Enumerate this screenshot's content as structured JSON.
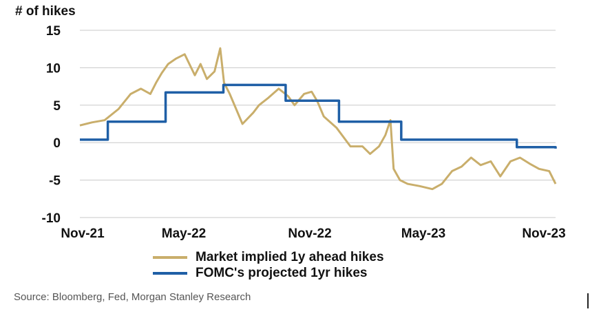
{
  "chart_data": {
    "type": "line",
    "ylabel": "# of hikes",
    "ylim": [
      -10,
      15
    ],
    "yticks": [
      15,
      10,
      5,
      0,
      -5,
      -10
    ],
    "xticks": [
      "Nov-21",
      "May-22",
      "Nov-22",
      "May-23",
      "Nov-23"
    ],
    "grid": "horizontal",
    "legend_position": "bottom",
    "series": [
      {
        "name": "Market implied 1y ahead hikes",
        "color": "#C9AE6B",
        "x": [
          "2021-11-01",
          "2021-11-20",
          "2021-12-10",
          "2022-01-01",
          "2022-01-20",
          "2022-02-05",
          "2022-02-20",
          "2022-03-01",
          "2022-03-10",
          "2022-03-20",
          "2022-04-01",
          "2022-04-15",
          "2022-05-01",
          "2022-05-10",
          "2022-05-20",
          "2022-06-01",
          "2022-06-10",
          "2022-06-16",
          "2022-06-25",
          "2022-07-05",
          "2022-07-15",
          "2022-08-01",
          "2022-08-10",
          "2022-08-25",
          "2022-09-10",
          "2022-09-25",
          "2022-10-05",
          "2022-10-20",
          "2022-11-01",
          "2022-11-10",
          "2022-11-20",
          "2022-12-10",
          "2023-01-01",
          "2023-01-20",
          "2023-02-01",
          "2023-02-15",
          "2023-02-25",
          "2023-03-05",
          "2023-03-10",
          "2023-03-20",
          "2023-04-01",
          "2023-04-20",
          "2023-05-10",
          "2023-05-25",
          "2023-06-10",
          "2023-06-25",
          "2023-07-10",
          "2023-07-25",
          "2023-08-10",
          "2023-08-25",
          "2023-09-10",
          "2023-09-25",
          "2023-10-10",
          "2023-10-25",
          "2023-11-10",
          "2023-11-20"
        ],
        "values": [
          2.3,
          2.7,
          3.0,
          4.5,
          6.5,
          7.2,
          6.5,
          8.0,
          9.3,
          10.5,
          11.2,
          11.8,
          9.0,
          10.5,
          8.5,
          9.5,
          12.6,
          8.0,
          6.5,
          4.5,
          2.5,
          4.0,
          5.0,
          6.0,
          7.2,
          6.2,
          5.0,
          6.5,
          6.8,
          5.5,
          3.5,
          2.0,
          -0.5,
          -0.5,
          -1.5,
          -0.5,
          1.0,
          3.0,
          -3.5,
          -5.0,
          -5.5,
          -5.8,
          -6.2,
          -5.5,
          -3.8,
          -3.2,
          -2.0,
          -3.0,
          -2.5,
          -4.5,
          -2.5,
          -2.0,
          -2.8,
          -3.5,
          -3.8,
          -5.5
        ]
      },
      {
        "name": "FOMC's projected 1yr hikes",
        "color": "#1F5FA6",
        "step": true,
        "x": [
          "2021-11-01",
          "2021-12-15",
          "2022-03-16",
          "2022-06-15",
          "2022-09-21",
          "2022-12-14",
          "2023-03-22",
          "2023-09-20",
          "2023-11-20"
        ],
        "values": [
          0.4,
          2.8,
          6.7,
          7.7,
          5.6,
          2.8,
          0.4,
          -0.6,
          -0.8
        ]
      }
    ]
  },
  "legend": {
    "market_label": "Market implied 1y ahead hikes",
    "fomc_label": "FOMC's projected 1yr hikes"
  },
  "source": "Source: Bloomberg, Fed, Morgan Stanley Research"
}
